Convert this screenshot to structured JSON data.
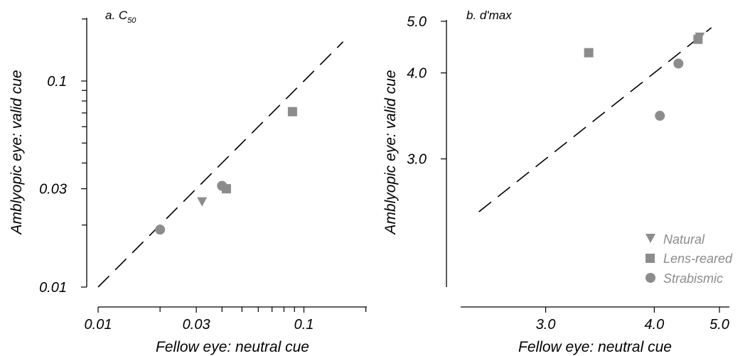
{
  "colors": {
    "marker": "#8c8c8c",
    "axis": "#000000"
  },
  "legend": {
    "placement": "bottom-right of panel b",
    "items": [
      {
        "label": "Natural",
        "shape": "triangle-down"
      },
      {
        "label": "Lens-reared",
        "shape": "square"
      },
      {
        "label": "Strabismic",
        "shape": "circle"
      }
    ]
  },
  "chart_data": [
    {
      "type": "scatter",
      "title": "a. C",
      "title_subscript": "50",
      "xlabel": "Fellow eye: neutral cue",
      "ylabel": "Amblyopic eye: valid cue",
      "xscale": "log",
      "yscale": "log",
      "xlim": [
        0.01,
        0.2
      ],
      "ylim": [
        0.01,
        0.2
      ],
      "xticks": [
        "0.01",
        "0.03",
        "0.1"
      ],
      "yticks": [
        "0.01",
        "0.03",
        "0.1"
      ],
      "xtick_values": [
        0.01,
        0.03,
        0.1
      ],
      "ytick_values": [
        0.01,
        0.03,
        0.1
      ],
      "reference_line": "y = x (dashed)",
      "grid": false,
      "series": [
        {
          "name": "Natural",
          "marker": "triangle-down",
          "points": [
            {
              "x": 0.032,
              "y": 0.026
            }
          ]
        },
        {
          "name": "Lens-reared",
          "marker": "square",
          "points": [
            {
              "x": 0.042,
              "y": 0.03
            },
            {
              "x": 0.088,
              "y": 0.071
            }
          ]
        },
        {
          "name": "Strabismic",
          "marker": "circle",
          "points": [
            {
              "x": 0.02,
              "y": 0.019
            },
            {
              "x": 0.04,
              "y": 0.031
            }
          ]
        }
      ]
    },
    {
      "type": "scatter",
      "title": "b. d'max",
      "xlabel": "Fellow eye: neutral cue",
      "ylabel": "Amblyopic eye: valid cue",
      "xscale": "reciprocal",
      "yscale": "reciprocal",
      "xlim": [
        2.5,
        5.0
      ],
      "ylim": [
        2.5,
        5.0
      ],
      "xticks": [
        "3.0",
        "4.0",
        "5.0"
      ],
      "yticks": [
        "3.0",
        "4.0",
        "5.0"
      ],
      "xtick_values": [
        3.0,
        4.0,
        5.0
      ],
      "ytick_values": [
        3.0,
        4.0,
        5.0
      ],
      "reference_line": "y = x (dashed)",
      "grid": false,
      "series": [
        {
          "name": "Natural",
          "marker": "triangle-down",
          "points": [
            {
              "x": 4.65,
              "y": 4.65
            }
          ]
        },
        {
          "name": "Lens-reared",
          "marker": "square",
          "points": [
            {
              "x": 3.33,
              "y": 4.34
            },
            {
              "x": 4.62,
              "y": 4.6
            }
          ]
        },
        {
          "name": "Strabismic",
          "marker": "circle",
          "points": [
            {
              "x": 4.32,
              "y": 4.15
            },
            {
              "x": 4.07,
              "y": 3.43
            }
          ]
        }
      ]
    }
  ]
}
